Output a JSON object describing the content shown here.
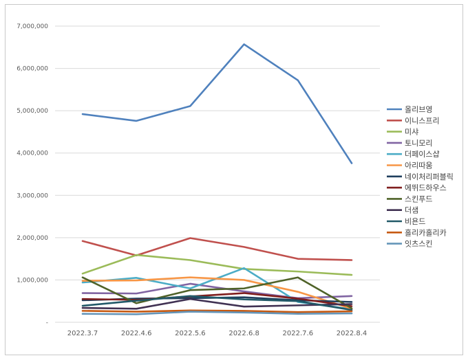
{
  "chart_data": {
    "type": "line",
    "title": "",
    "xlabel": "",
    "ylabel": "",
    "categories": [
      "2022.3.7",
      "2022.4.6",
      "2022.5.6",
      "2022.6.8",
      "2022.7.6",
      "2022.8.4"
    ],
    "ylim": [
      0,
      7000000
    ],
    "yticks": [
      0,
      1000000,
      2000000,
      3000000,
      4000000,
      5000000,
      6000000,
      7000000
    ],
    "ytick_labels": [
      "-",
      "1,000,000",
      "2,000,000",
      "3,000,000",
      "4,000,000",
      "5,000,000",
      "6,000,000",
      "7,000,000"
    ],
    "grid": true,
    "legend_position": "right",
    "series": [
      {
        "name": "올리브영",
        "color": "#4f81bd",
        "values": [
          4920000,
          4760000,
          5110000,
          6570000,
          5720000,
          3760000
        ]
      },
      {
        "name": "이니스프리",
        "color": "#c0504d",
        "values": [
          1920000,
          1580000,
          1990000,
          1780000,
          1500000,
          1470000
        ]
      },
      {
        "name": "미샤",
        "color": "#9bbb59",
        "values": [
          1150000,
          1590000,
          1470000,
          1260000,
          1200000,
          1120000
        ]
      },
      {
        "name": "토니모리",
        "color": "#8064a2",
        "values": [
          690000,
          680000,
          910000,
          730000,
          570000,
          620000
        ]
      },
      {
        "name": "더페이스샵",
        "color": "#4bacc6",
        "values": [
          940000,
          1050000,
          800000,
          1280000,
          480000,
          310000
        ]
      },
      {
        "name": "아리따움",
        "color": "#f79646",
        "values": [
          980000,
          990000,
          1060000,
          1000000,
          720000,
          320000
        ]
      },
      {
        "name": "네이처리퍼블릭",
        "color": "#1f3f5e",
        "values": [
          520000,
          560000,
          570000,
          590000,
          520000,
          480000
        ]
      },
      {
        "name": "에뛰드하우스",
        "color": "#7f1d1d",
        "values": [
          550000,
          530000,
          610000,
          690000,
          560000,
          380000
        ]
      },
      {
        "name": "스킨푸드",
        "color": "#4f6228",
        "values": [
          1060000,
          450000,
          760000,
          800000,
          1060000,
          330000
        ]
      },
      {
        "name": "더샘",
        "color": "#403152",
        "values": [
          340000,
          320000,
          550000,
          370000,
          400000,
          430000
        ]
      },
      {
        "name": "비욘드",
        "color": "#215968",
        "values": [
          390000,
          510000,
          620000,
          540000,
          500000,
          290000
        ]
      },
      {
        "name": "홀리카홀리카",
        "color": "#c65911",
        "values": [
          270000,
          250000,
          280000,
          270000,
          240000,
          260000
        ]
      },
      {
        "name": "잇츠스킨",
        "color": "#6495b9",
        "values": [
          200000,
          190000,
          250000,
          230000,
          200000,
          210000
        ]
      }
    ]
  }
}
